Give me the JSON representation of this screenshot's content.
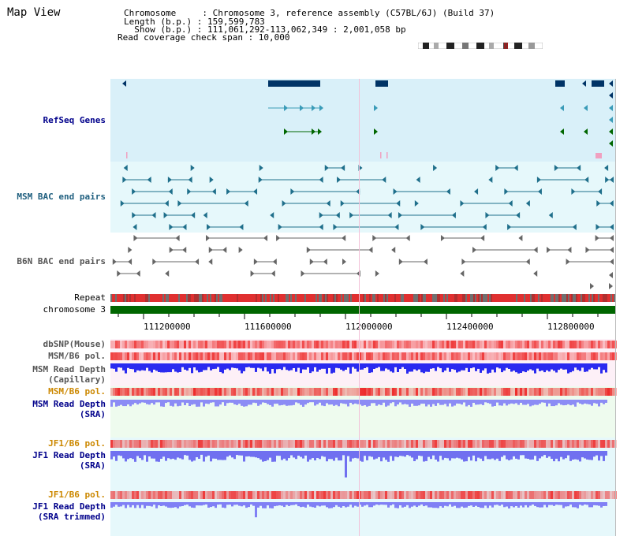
{
  "page_title": "Map View",
  "header": {
    "chromosome_line": "Chromosome     : Chromosome 3, reference assembly (C57BL/6J) (Build 37)",
    "length_line": "Length (b.p.) : 159,599,783",
    "show_line": "  Show (b.p.) : 111,061,292-113,062,349 : 2,001,058 bp",
    "coverage_line": "Read coverage check span : 10,000"
  },
  "tracks": {
    "refseq": "RefSeq Genes",
    "msm_bac": "MSM BAC end pairs",
    "b6n_bac": "B6N BAC end pairs",
    "repeat": "Repeat",
    "chromosome": "chromosome 3",
    "dbsnp": "dbSNP(Mouse)",
    "msm_pol1": "MSM/B6 pol.",
    "msm_depth_cap_1": "MSM Read Depth",
    "msm_depth_cap_2": "(Capillary)",
    "msm_pol2": "MSM/B6 pol.",
    "msm_depth_sra_1": "MSM Read Depth",
    "msm_depth_sra_2": "(SRA)",
    "jf1_pol1": "JF1/B6 pol.",
    "jf1_depth_sra_1": "JF1 Read Depth",
    "jf1_depth_sra_2": "(SRA)",
    "jf1_pol2": "JF1/B6 pol.",
    "jf1_depth_trim_1": "JF1 Read Depth",
    "jf1_depth_trim_2": "(SRA trimmed)"
  },
  "axis_ticks": [
    "111200000",
    "111600000",
    "112000000",
    "112400000",
    "112800000"
  ],
  "colors": {
    "refseq_bg": "#d9f0f9",
    "msm_bg": "#e6f8fb",
    "b6n_bg": "#ffffff",
    "gene_dark": "#003366",
    "gene_teal": "#3a9bb8",
    "gene_green": "#006600",
    "bac_teal": "#1f6f8b",
    "bac_gray": "#666666",
    "chrom_green": "#006600",
    "label_blue": "#00008b",
    "label_orange": "#cc8800",
    "depth_blue": "#3333ff",
    "depth_light": "#8888ff"
  }
}
